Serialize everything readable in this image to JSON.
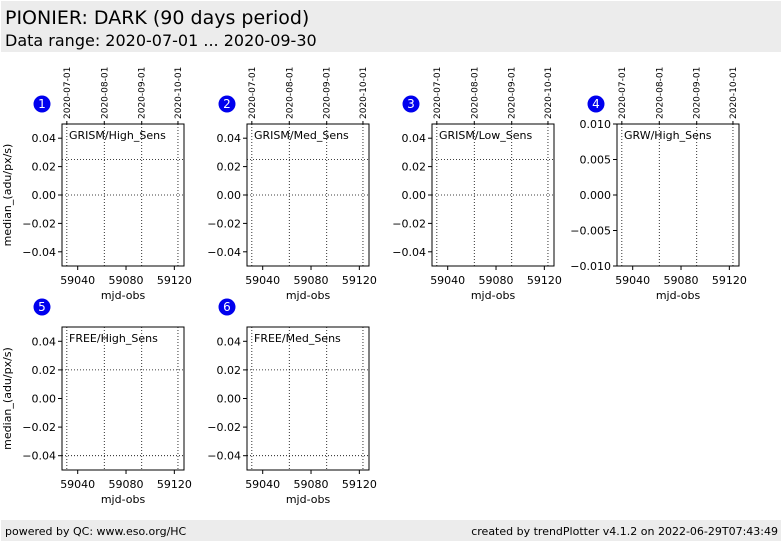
{
  "header": {
    "title": "PIONIER: DARK (90 days period)",
    "subtitle": "Data range: 2020-07-01 ... 2020-09-30"
  },
  "footer": {
    "left": "powered by QC: www.eso.org/HC",
    "right": "created by trendPlotter v4.1.2 on 2022-06-29T07:43:49"
  },
  "colors": {
    "badge": "#0000ee",
    "header_bg": "#ececec"
  },
  "chart_data": [
    {
      "type": "scatter",
      "panel": "1",
      "label": "GRISM/High_Sens",
      "xlabel": "mjd-obs",
      "ylabel": "median_(adu/px/s)",
      "xlim": [
        59027,
        59128
      ],
      "ylim": [
        -0.05,
        0.05
      ],
      "xticks": [
        59040,
        59080,
        59120
      ],
      "xtick_labels": [
        "59040",
        "59080",
        "59120"
      ],
      "yticks": [
        -0.04,
        -0.02,
        0.0,
        0.02,
        0.04
      ],
      "ytick_labels": [
        "−0.04",
        "−0.02",
        "0.00",
        "0.02",
        "0.04"
      ],
      "top_ticks": [
        59031,
        59062,
        59093,
        59123
      ],
      "top_tick_labels": [
        "2020-07-01",
        "2020-08-01",
        "2020-09-01",
        "2020-10-01"
      ],
      "hlines": [
        0.025,
        0.0
      ],
      "series": []
    },
    {
      "type": "scatter",
      "panel": "2",
      "label": "GRISM/Med_Sens",
      "xlabel": "mjd-obs",
      "ylabel": "",
      "xlim": [
        59027,
        59128
      ],
      "ylim": [
        -0.05,
        0.05
      ],
      "xticks": [
        59040,
        59080,
        59120
      ],
      "xtick_labels": [
        "59040",
        "59080",
        "59120"
      ],
      "yticks": [
        -0.04,
        -0.02,
        0.0,
        0.02,
        0.04
      ],
      "ytick_labels": [
        "−0.04",
        "−0.02",
        "0.00",
        "0.02",
        "0.04"
      ],
      "top_ticks": [
        59031,
        59062,
        59093,
        59123
      ],
      "top_tick_labels": [
        "2020-07-01",
        "2020-08-01",
        "2020-09-01",
        "2020-10-01"
      ],
      "hlines": [
        0.025,
        0.0
      ],
      "series": []
    },
    {
      "type": "scatter",
      "panel": "3",
      "label": "GRISM/Low_Sens",
      "xlabel": "mjd-obs",
      "ylabel": "",
      "xlim": [
        59027,
        59128
      ],
      "ylim": [
        -0.05,
        0.05
      ],
      "xticks": [
        59040,
        59080,
        59120
      ],
      "xtick_labels": [
        "59040",
        "59080",
        "59120"
      ],
      "yticks": [
        -0.04,
        -0.02,
        0.0,
        0.02,
        0.04
      ],
      "ytick_labels": [
        "−0.04",
        "−0.02",
        "0.00",
        "0.02",
        "0.04"
      ],
      "top_ticks": [
        59031,
        59062,
        59093,
        59123
      ],
      "top_tick_labels": [
        "2020-07-01",
        "2020-08-01",
        "2020-09-01",
        "2020-10-01"
      ],
      "hlines": [
        0.025,
        0.0
      ],
      "series": []
    },
    {
      "type": "scatter",
      "panel": "4",
      "label": "GRW/High_Sens",
      "xlabel": "mjd-obs",
      "ylabel": "",
      "xlim": [
        59027,
        59128
      ],
      "ylim": [
        -0.01,
        0.01
      ],
      "xticks": [
        59040,
        59080,
        59120
      ],
      "xtick_labels": [
        "59040",
        "59080",
        "59120"
      ],
      "yticks": [
        -0.01,
        -0.005,
        0.0,
        0.005,
        0.01
      ],
      "ytick_labels": [
        "−0.010",
        "−0.005",
        "0.000",
        "0.005",
        "0.010"
      ],
      "top_ticks": [
        59031,
        59062,
        59093,
        59123
      ],
      "top_tick_labels": [
        "2020-07-01",
        "2020-08-01",
        "2020-09-01",
        "2020-10-01"
      ],
      "hlines": [],
      "series": []
    },
    {
      "type": "scatter",
      "panel": "5",
      "label": "FREE/High_Sens",
      "xlabel": "mjd-obs",
      "ylabel": "median_(adu/px/s)",
      "xlim": [
        59027,
        59128
      ],
      "ylim": [
        -0.05,
        0.05
      ],
      "xticks": [
        59040,
        59080,
        59120
      ],
      "xtick_labels": [
        "59040",
        "59080",
        "59120"
      ],
      "yticks": [
        -0.04,
        -0.02,
        0.0,
        0.02,
        0.04
      ],
      "ytick_labels": [
        "−0.04",
        "−0.02",
        "0.00",
        "0.02",
        "0.04"
      ],
      "top_ticks": [
        59031,
        59062,
        59093,
        59123
      ],
      "top_tick_labels": [],
      "hlines": [
        0.02,
        -0.04
      ],
      "series": []
    },
    {
      "type": "scatter",
      "panel": "6",
      "label": "FREE/Med_Sens",
      "xlabel": "mjd-obs",
      "ylabel": "",
      "xlim": [
        59027,
        59128
      ],
      "ylim": [
        -0.05,
        0.05
      ],
      "xticks": [
        59040,
        59080,
        59120
      ],
      "xtick_labels": [
        "59040",
        "59080",
        "59120"
      ],
      "yticks": [
        -0.04,
        -0.02,
        0.0,
        0.02,
        0.04
      ],
      "ytick_labels": [
        "−0.04",
        "−0.02",
        "0.00",
        "0.02",
        "0.04"
      ],
      "top_ticks": [
        59031,
        59062,
        59093,
        59123
      ],
      "top_tick_labels": [],
      "hlines": [
        0.02,
        -0.04
      ],
      "series": []
    }
  ]
}
